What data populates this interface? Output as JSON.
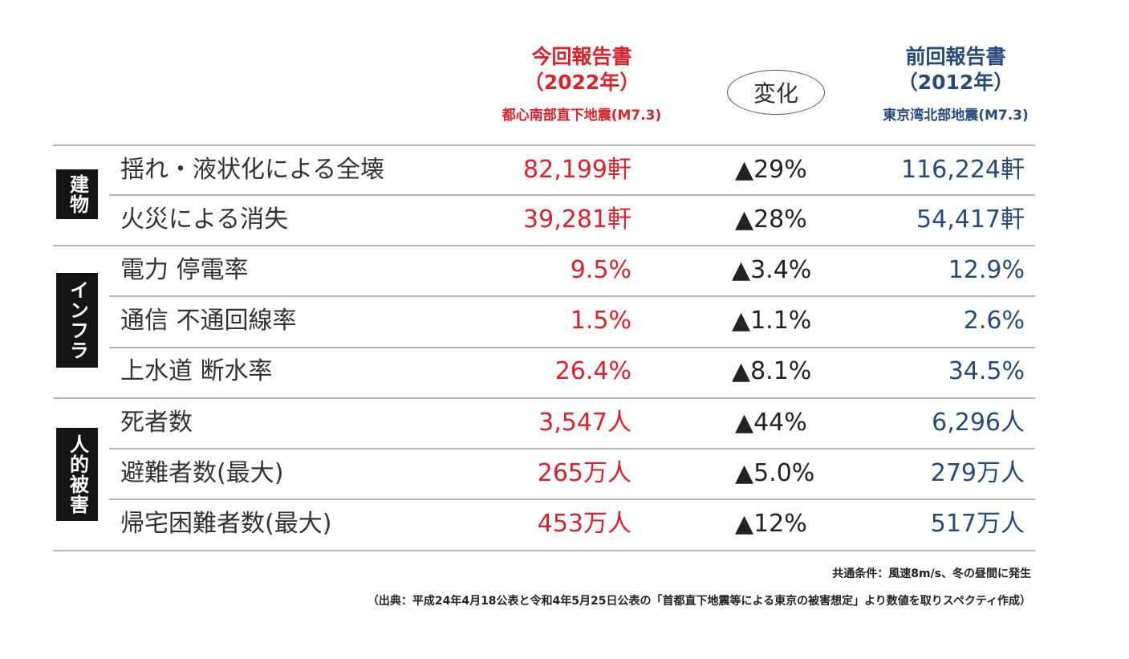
{
  "header": {
    "current_title": "今回報告書",
    "current_year": "（2022年）",
    "current_scenario": "都心南部直下地震(M7.3)",
    "change_label": "変化",
    "previous_title": "前回報告書",
    "previous_year": "（2012年）",
    "previous_scenario": "東京湾北部地震(M7.3)"
  },
  "categories": {
    "buildings": "建物",
    "infrastructure": "インフラ",
    "human": "人的被害"
  },
  "rows": [
    {
      "label": "揺れ・液状化による全壊",
      "current": "82,199軒",
      "change": "▲29%",
      "previous": "116,224軒"
    },
    {
      "label": "火災による消失",
      "current": "39,281軒",
      "change": "▲28%",
      "previous": "54,417軒"
    },
    {
      "label": "電力 停電率",
      "current": "9.5%",
      "change": "▲3.4%",
      "previous": "12.9%"
    },
    {
      "label": "通信 不通回線率",
      "current": "1.5%",
      "change": "▲1.1%",
      "previous": "2.6%"
    },
    {
      "label": "上水道 断水率",
      "current": "26.4%",
      "change": "▲8.1%",
      "previous": "34.5%"
    },
    {
      "label": "死者数",
      "current": "3,547人",
      "change": "▲44%",
      "previous": "6,296人"
    },
    {
      "label": "避難者数(最大)",
      "current": "265万人",
      "change": "▲5.0%",
      "previous": "279万人"
    },
    {
      "label": "帰宅困難者数(最大)",
      "current": "453万人",
      "change": "▲12%",
      "previous": "517万人"
    }
  ],
  "notes": {
    "conditions": "共通条件：風速8m/s、冬の昼間に発生",
    "source": "（出典：平成24年4月18公表と令和4年5月25日公表の「首都直下地震等による東京の被害想定」より数値を取りスペクティ作成）"
  }
}
